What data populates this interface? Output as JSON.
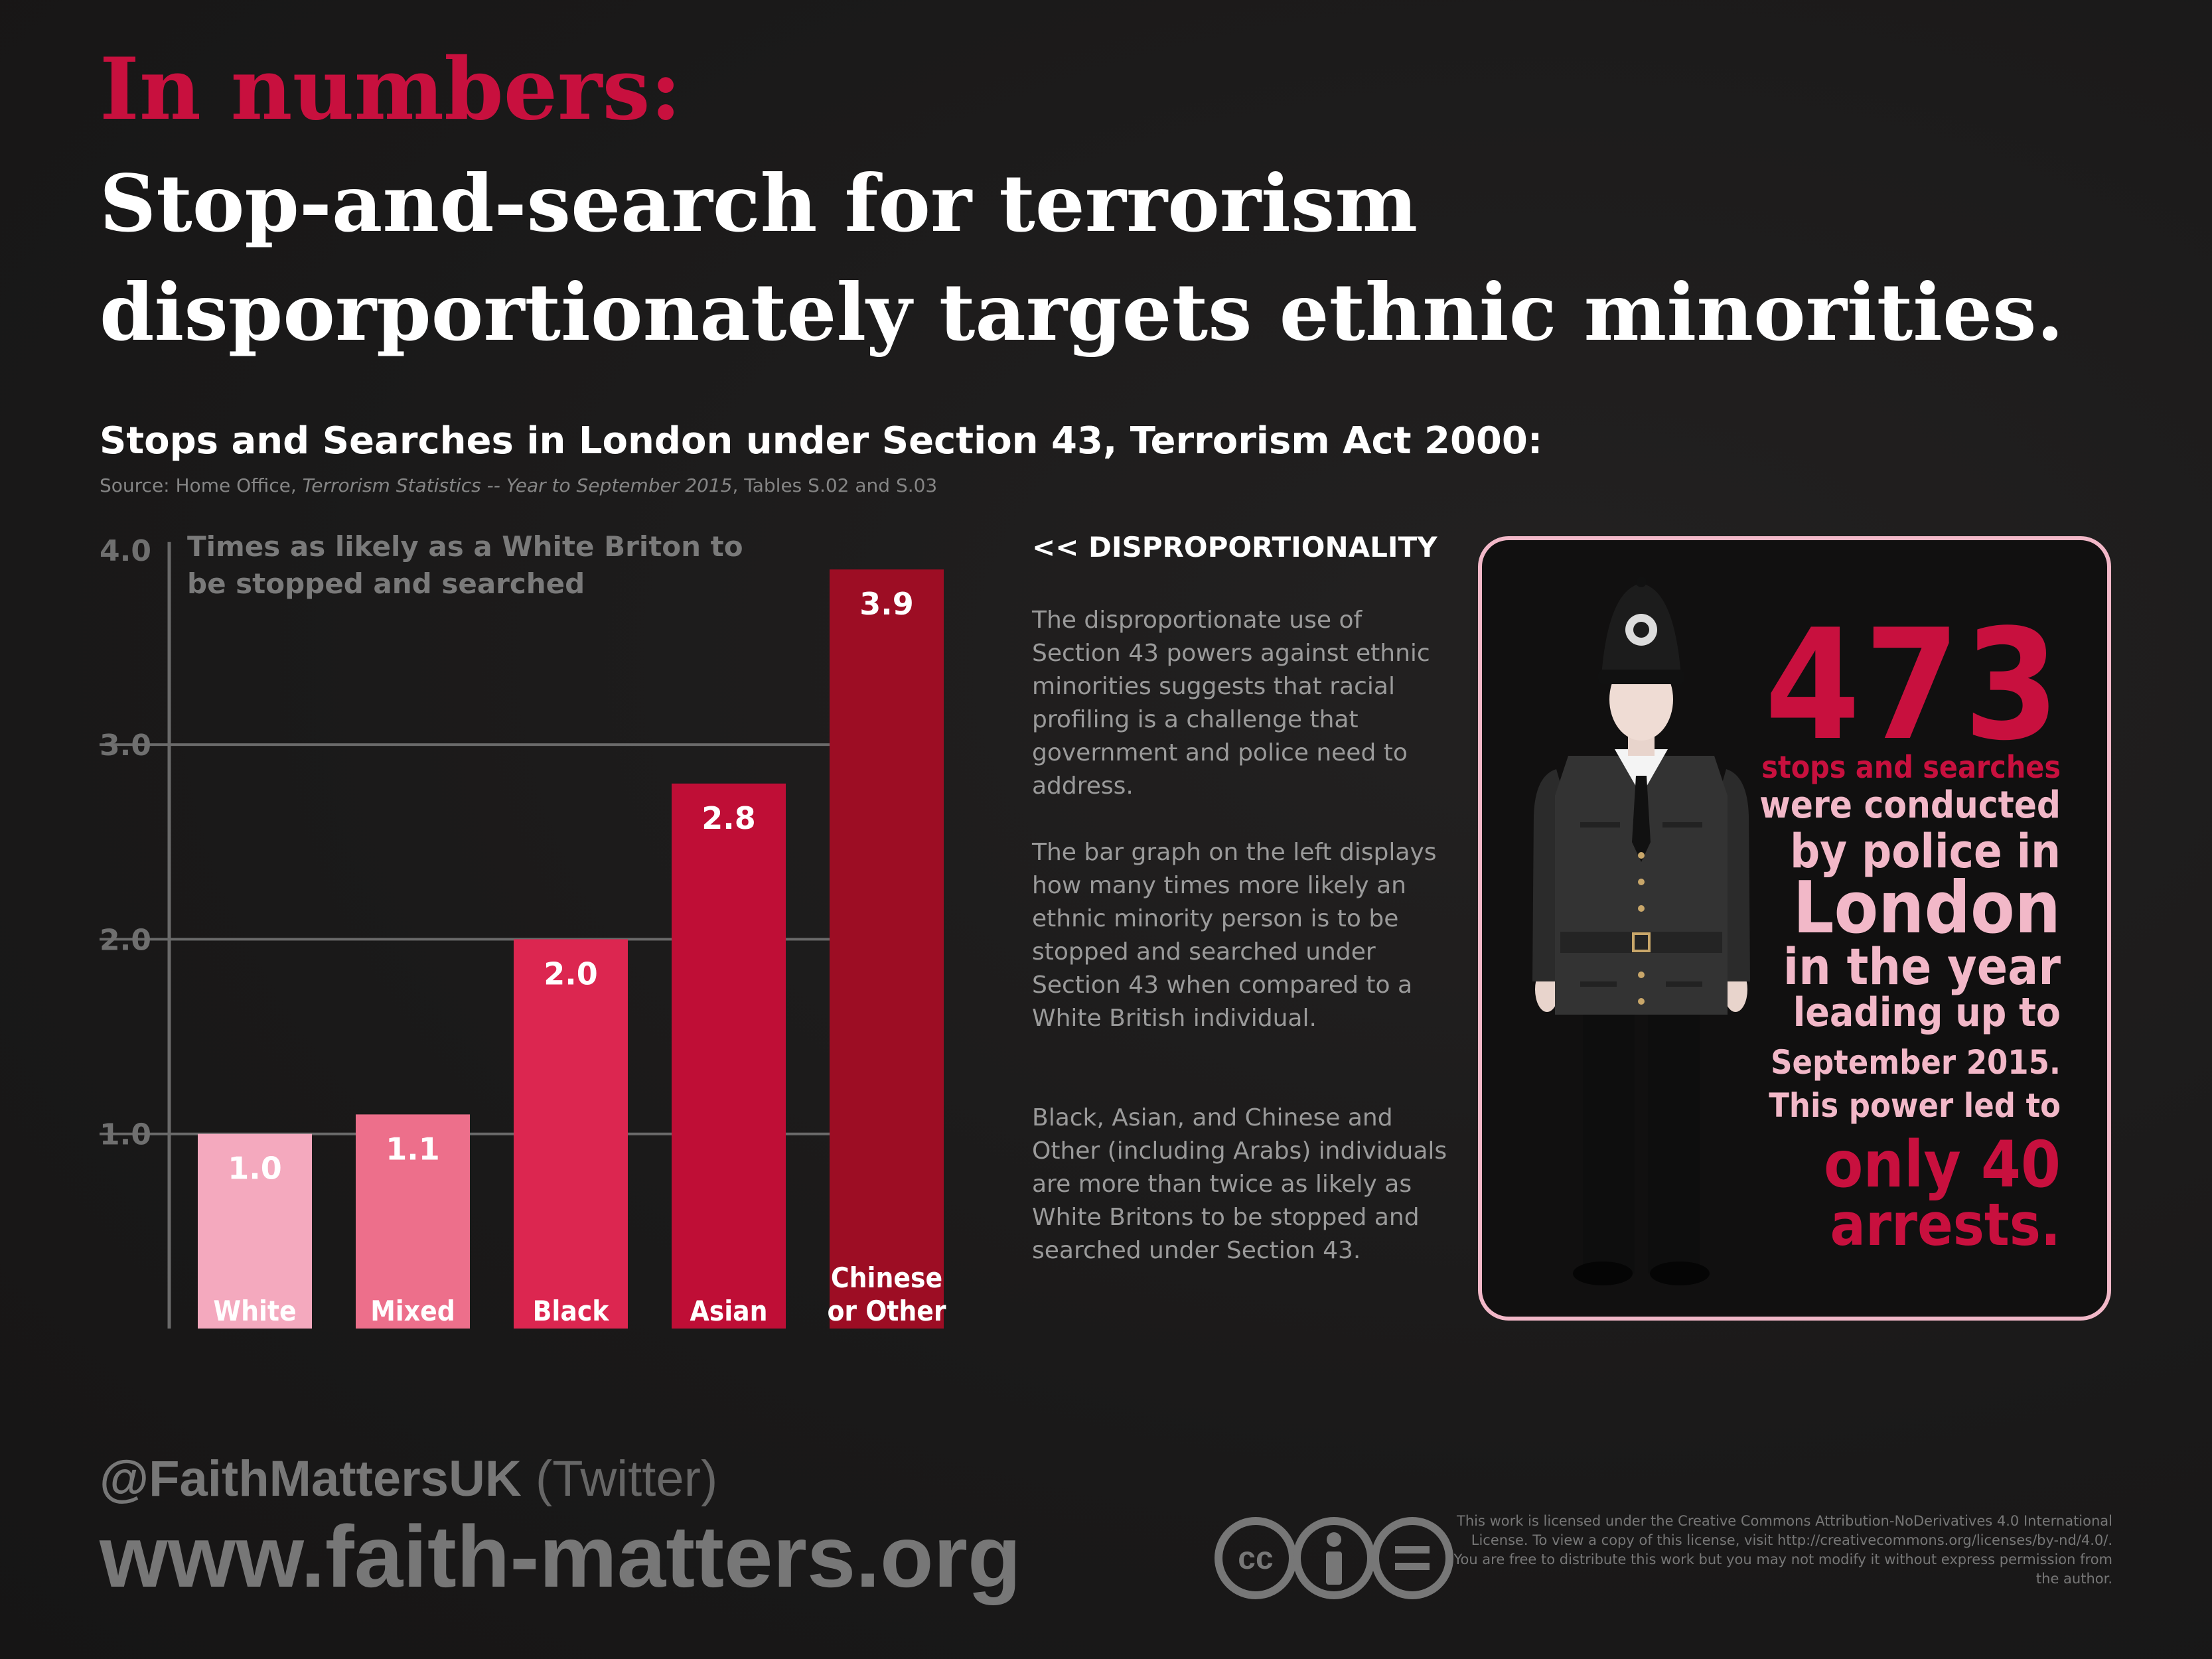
{
  "header": {
    "kicker": "In numbers:",
    "headline": "Stop-and-search for terrorism disporportionately targets ethnic minorities."
  },
  "chart_title": "Stops and Searches in London under Section 43, Terrorism Act 2000:",
  "source": {
    "prefix": "Source: Home Office, ",
    "italic": "Terrorism Statistics -- Year to September 2015",
    "suffix": ", Tables S.02 and S.03"
  },
  "chart_data": {
    "type": "bar",
    "categories": [
      "White",
      "Mixed",
      "Black",
      "Asian",
      "Chinese or Other"
    ],
    "category_lines": [
      [
        "White"
      ],
      [
        "Mixed"
      ],
      [
        "Black"
      ],
      [
        "Asian"
      ],
      [
        "Chinese",
        "or Other"
      ]
    ],
    "values": [
      1.0,
      1.1,
      2.0,
      2.8,
      3.9
    ],
    "value_labels": [
      "1.0",
      "1.1",
      "2.0",
      "2.8",
      "3.9"
    ],
    "bar_colors": [
      "#f4a9be",
      "#ed6f8b",
      "#dc2650",
      "#bf0e36",
      "#9d0d24"
    ],
    "ylabel_lines": [
      "Times as likely as a White Briton to",
      "be stopped and searched"
    ],
    "yticks": [
      "1.0",
      "2.0",
      "3.0",
      "4.0"
    ],
    "ylim": [
      0,
      4.0
    ],
    "grid": true
  },
  "sidebar": {
    "heading": "<< DISPROPORTIONALITY",
    "paragraphs": [
      "The disproportionate use of Section 43 powers against ethnic minorities suggests that racial profiling is a challenge that government and police need to address.",
      "The bar graph on the left displays how many times more likely an ethnic minority person is to be stopped and searched under Section 43 when compared to a White British individual.",
      "Black, Asian, and Chinese and Other (including Arabs) individuals are more than twice as likely as White Britons to be stopped and searched under Section 43."
    ]
  },
  "callout": {
    "number": "473",
    "lines": [
      "stops and searches",
      "were conducted",
      "by police in",
      "London",
      "in the year",
      "leading up to",
      "September 2015.",
      "This power led to",
      "only 40",
      "arrests."
    ],
    "colors": {
      "accent": "#c8103e",
      "pink": "#f2b8c8"
    }
  },
  "footer": {
    "twitter_handle": "@FaithMattersUK",
    "twitter_suffix": " (Twitter)",
    "website": "www.faith-matters.org",
    "license": "This work is licensed under the Creative Commons Attribution-NoDerivatives 4.0 International License. To view a copy of this license, visit http://creativecommons.org/licenses/by-nd/4.0/. You are free to distribute this work but you may not modify it without express permission from the author.",
    "cc_icons": [
      "cc-icon",
      "attribution-icon",
      "no-derivatives-icon"
    ]
  }
}
